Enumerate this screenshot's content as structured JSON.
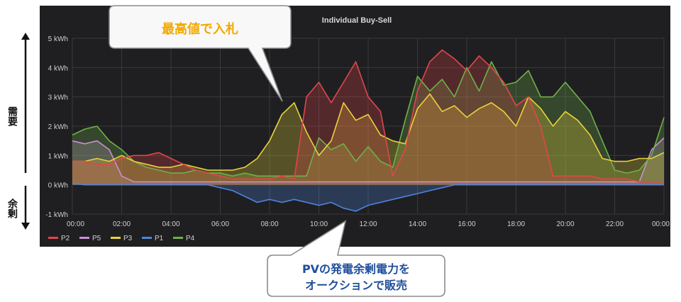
{
  "side_labels": {
    "demand": "需要",
    "surplus": "余剰"
  },
  "callouts": {
    "top": {
      "text": "最高値で入札",
      "color": "#f2a900"
    },
    "bottom": {
      "line1": "PVの発電余剰電力を",
      "line2": "オークションで販売",
      "color": "#1f4e9c"
    }
  },
  "chart_data": {
    "type": "area",
    "title": "Individual Buy-Sell",
    "xlabel": "",
    "ylabel": "",
    "y_unit": "kWh",
    "ylim": [
      -1,
      5
    ],
    "yticks": [
      "-1 kWh",
      "0 kWh",
      "1 kWh",
      "2 kWh",
      "3 kWh",
      "4 kWh",
      "5 kWh"
    ],
    "xticks": [
      "00:00",
      "02:00",
      "04:00",
      "06:00",
      "08:00",
      "10:00",
      "12:00",
      "14:00",
      "16:00",
      "18:00",
      "20:00",
      "22:00",
      "00:00"
    ],
    "grid": true,
    "legend_position": "bottom-left",
    "x_hours": [
      0,
      0.5,
      1,
      1.5,
      2,
      2.5,
      3,
      3.5,
      4,
      4.5,
      5,
      5.5,
      6,
      6.5,
      7,
      7.5,
      8,
      8.5,
      9,
      9.5,
      10,
      10.5,
      11,
      11.5,
      12,
      12.5,
      13,
      13.5,
      14,
      14.5,
      15,
      15.5,
      16,
      16.5,
      17,
      17.5,
      18,
      18.5,
      19,
      19.5,
      20,
      20.5,
      21,
      21.5,
      22,
      22.5,
      23,
      23.5,
      24
    ],
    "series": [
      {
        "name": "P2",
        "color": "#e0464d",
        "values": [
          0.8,
          0.8,
          0.7,
          0.7,
          0.9,
          1.0,
          1.0,
          1.1,
          0.9,
          0.7,
          0.5,
          0.4,
          0.3,
          0.2,
          0.2,
          0.2,
          0.2,
          0.3,
          0.2,
          3.0,
          3.5,
          2.8,
          3.5,
          4.2,
          3.0,
          2.5,
          0.3,
          1.2,
          3.2,
          4.2,
          4.6,
          4.3,
          3.9,
          4.4,
          4.0,
          3.5,
          2.7,
          3.0,
          2.0,
          0.3,
          0.3,
          0.3,
          0.3,
          0.2,
          0.2,
          0.2,
          0.1,
          0.1,
          0.1
        ]
      },
      {
        "name": "P5",
        "color": "#c98fd6",
        "values": [
          1.5,
          1.4,
          1.5,
          1.2,
          0.3,
          0.1,
          0.1,
          0.1,
          0.1,
          0.1,
          0.1,
          0.1,
          0.1,
          0.1,
          0.1,
          0.1,
          0.1,
          0.1,
          0.1,
          0.1,
          0.1,
          0.1,
          0.1,
          0.1,
          0.1,
          0.1,
          0.1,
          0.1,
          0.1,
          0.1,
          0.1,
          0.1,
          0.1,
          0.1,
          0.1,
          0.1,
          0.1,
          0.1,
          0.1,
          0.1,
          0.1,
          0.1,
          0.1,
          0.1,
          0.1,
          0.1,
          0.1,
          1.2,
          1.6
        ]
      },
      {
        "name": "P3",
        "color": "#e8d33c",
        "values": [
          0.8,
          0.8,
          0.9,
          0.8,
          1.0,
          0.8,
          0.7,
          0.6,
          0.6,
          0.7,
          0.6,
          0.5,
          0.5,
          0.5,
          0.6,
          0.9,
          1.5,
          2.4,
          2.8,
          1.8,
          1.0,
          1.5,
          2.8,
          2.2,
          2.4,
          1.7,
          1.5,
          1.4,
          2.6,
          3.1,
          2.5,
          2.7,
          2.3,
          2.6,
          2.8,
          2.5,
          2.0,
          3.0,
          2.6,
          2.0,
          2.5,
          2.2,
          1.7,
          0.9,
          0.8,
          0.8,
          0.9,
          0.9,
          1.1
        ]
      },
      {
        "name": "P1",
        "color": "#4f84e0",
        "values": [
          0.05,
          0.0,
          0.0,
          0.0,
          0.0,
          0.0,
          0.0,
          0.0,
          0.0,
          0.0,
          0.0,
          0.0,
          -0.1,
          -0.2,
          -0.4,
          -0.6,
          -0.5,
          -0.6,
          -0.5,
          -0.6,
          -0.7,
          -0.6,
          -0.8,
          -0.9,
          -0.7,
          -0.6,
          -0.5,
          -0.4,
          -0.3,
          -0.2,
          -0.1,
          0.0,
          0.0,
          0.0,
          0.0,
          0.0,
          0.0,
          0.0,
          0.0,
          0.0,
          0.0,
          0.0,
          0.0,
          0.0,
          0.0,
          0.0,
          0.0,
          0.0,
          0.0
        ]
      },
      {
        "name": "P4",
        "color": "#6fb04a",
        "values": [
          1.7,
          1.9,
          2.0,
          1.5,
          1.2,
          0.8,
          0.6,
          0.5,
          0.4,
          0.4,
          0.5,
          0.4,
          0.4,
          0.3,
          0.4,
          0.3,
          0.3,
          0.3,
          0.3,
          0.3,
          1.6,
          1.2,
          1.4,
          0.8,
          1.3,
          0.8,
          0.6,
          2.2,
          3.7,
          3.2,
          3.6,
          3.0,
          4.0,
          3.2,
          4.2,
          3.4,
          3.5,
          3.9,
          3.0,
          3.0,
          3.5,
          3.0,
          2.5,
          1.5,
          0.5,
          0.4,
          0.5,
          1.0,
          2.3
        ]
      }
    ]
  }
}
